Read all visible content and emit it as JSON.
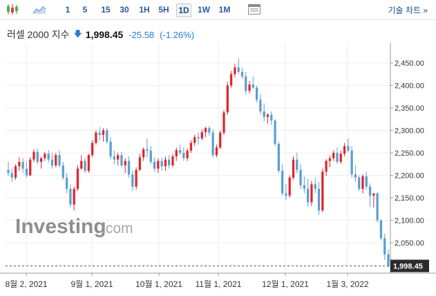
{
  "toolbar": {
    "chart_type_icons": [
      "candlestick-icon",
      "area-chart-icon"
    ],
    "timeframes": [
      "1",
      "5",
      "15",
      "30",
      "1H",
      "5H",
      "1D",
      "1W",
      "1M"
    ],
    "active_timeframe": "1D",
    "settings_icon": "table-icon",
    "technical_chart_link": "기술 차트 »"
  },
  "quote": {
    "name": "러셀 2000 지수",
    "direction_icon": "down-arrow-icon",
    "last": "1,998.45",
    "change": "-25.58",
    "change_pct": "(-1.26%)"
  },
  "watermark": {
    "brand": "Investing",
    "suffix": ".com"
  },
  "colors": {
    "up": "#e0262b",
    "down": "#5a9fd4",
    "accent": "#1f7fd1",
    "grid": "#eeeeee",
    "label_bg": "#2b2b2b"
  },
  "chart_data": {
    "type": "candlestick",
    "title": "",
    "ylabel": "",
    "xlabel": "",
    "y_ticks": [
      "2,450.00",
      "2,400.00",
      "2,350.00",
      "2,300.00",
      "2,250.00",
      "2,200.00",
      "2,150.00",
      "2,100.00",
      "2,050.00"
    ],
    "y_tick_values": [
      2450,
      2400,
      2350,
      2300,
      2250,
      2200,
      2150,
      2100,
      2050
    ],
    "x_ticks": [
      "8월 2, 2021",
      "9월 1, 2021",
      "10월 1, 2021",
      "11월 1, 2021",
      "12월 1, 2021",
      "1월 3, 2022"
    ],
    "ylim": [
      1985,
      2465
    ],
    "current_price_label": "1,998.45",
    "current_price": 1998.45,
    "grid": true,
    "series": [
      {
        "values": [
          [
            2212,
            2230,
            2198,
            2205
          ],
          [
            2205,
            2215,
            2185,
            2195
          ],
          [
            2195,
            2225,
            2190,
            2220
          ],
          [
            2220,
            2240,
            2210,
            2230
          ],
          [
            2230,
            2238,
            2205,
            2215
          ],
          [
            2215,
            2230,
            2195,
            2200
          ],
          [
            2200,
            2240,
            2198,
            2235
          ],
          [
            2235,
            2258,
            2230,
            2252
          ],
          [
            2252,
            2260,
            2225,
            2230
          ],
          [
            2230,
            2242,
            2215,
            2238
          ],
          [
            2238,
            2252,
            2232,
            2248
          ],
          [
            2248,
            2256,
            2228,
            2235
          ],
          [
            2235,
            2250,
            2215,
            2222
          ],
          [
            2222,
            2250,
            2218,
            2245
          ],
          [
            2245,
            2255,
            2218,
            2222
          ],
          [
            2222,
            2230,
            2190,
            2195
          ],
          [
            2195,
            2205,
            2160,
            2170
          ],
          [
            2170,
            2180,
            2128,
            2135
          ],
          [
            2135,
            2175,
            2122,
            2170
          ],
          [
            2170,
            2222,
            2165,
            2215
          ],
          [
            2215,
            2245,
            2212,
            2232
          ],
          [
            2232,
            2238,
            2205,
            2210
          ],
          [
            2210,
            2248,
            2205,
            2245
          ],
          [
            2245,
            2278,
            2240,
            2272
          ],
          [
            2272,
            2300,
            2268,
            2295
          ],
          [
            2295,
            2308,
            2278,
            2290
          ],
          [
            2290,
            2305,
            2275,
            2300
          ],
          [
            2300,
            2305,
            2270,
            2275
          ],
          [
            2275,
            2285,
            2235,
            2242
          ],
          [
            2242,
            2255,
            2225,
            2235
          ],
          [
            2235,
            2250,
            2222,
            2245
          ],
          [
            2245,
            2252,
            2218,
            2222
          ],
          [
            2222,
            2238,
            2205,
            2232
          ],
          [
            2232,
            2242,
            2195,
            2202
          ],
          [
            2202,
            2210,
            2165,
            2175
          ],
          [
            2175,
            2218,
            2168,
            2212
          ],
          [
            2212,
            2248,
            2210,
            2240
          ],
          [
            2240,
            2262,
            2232,
            2258
          ],
          [
            2258,
            2282,
            2240,
            2255
          ],
          [
            2255,
            2265,
            2225,
            2230
          ],
          [
            2230,
            2240,
            2208,
            2215
          ],
          [
            2215,
            2238,
            2205,
            2232
          ],
          [
            2232,
            2240,
            2210,
            2220
          ],
          [
            2220,
            2242,
            2210,
            2235
          ],
          [
            2235,
            2245,
            2215,
            2222
          ],
          [
            2222,
            2248,
            2218,
            2242
          ],
          [
            2242,
            2262,
            2232,
            2256
          ],
          [
            2256,
            2268,
            2245,
            2250
          ],
          [
            2250,
            2262,
            2232,
            2238
          ],
          [
            2238,
            2260,
            2232,
            2255
          ],
          [
            2255,
            2278,
            2250,
            2272
          ],
          [
            2272,
            2290,
            2265,
            2285
          ],
          [
            2285,
            2295,
            2268,
            2282
          ],
          [
            2282,
            2302,
            2278,
            2296
          ],
          [
            2296,
            2308,
            2285,
            2305
          ],
          [
            2305,
            2310,
            2288,
            2295
          ],
          [
            2295,
            2302,
            2240,
            2245
          ],
          [
            2245,
            2268,
            2240,
            2262
          ],
          [
            2262,
            2300,
            2258,
            2295
          ],
          [
            2295,
            2345,
            2290,
            2340
          ],
          [
            2340,
            2408,
            2335,
            2400
          ],
          [
            2400,
            2432,
            2395,
            2425
          ],
          [
            2425,
            2448,
            2418,
            2440
          ],
          [
            2440,
            2460,
            2425,
            2430
          ],
          [
            2430,
            2440,
            2415,
            2420
          ],
          [
            2420,
            2430,
            2380,
            2388
          ],
          [
            2388,
            2410,
            2382,
            2402
          ],
          [
            2402,
            2420,
            2392,
            2395
          ],
          [
            2395,
            2400,
            2362,
            2368
          ],
          [
            2368,
            2380,
            2335,
            2342
          ],
          [
            2342,
            2360,
            2320,
            2330
          ],
          [
            2330,
            2338,
            2315,
            2335
          ],
          [
            2335,
            2342,
            2312,
            2322
          ],
          [
            2322,
            2325,
            2265,
            2270
          ],
          [
            2270,
            2275,
            2205,
            2210
          ],
          [
            2210,
            2225,
            2155,
            2160
          ],
          [
            2160,
            2180,
            2145,
            2155
          ],
          [
            2155,
            2200,
            2150,
            2195
          ],
          [
            2195,
            2242,
            2190,
            2235
          ],
          [
            2235,
            2250,
            2205,
            2212
          ],
          [
            2212,
            2225,
            2170,
            2178
          ],
          [
            2178,
            2198,
            2160,
            2170
          ],
          [
            2170,
            2192,
            2130,
            2140
          ],
          [
            2140,
            2188,
            2132,
            2180
          ],
          [
            2180,
            2195,
            2160,
            2170
          ],
          [
            2170,
            2185,
            2112,
            2122
          ],
          [
            2122,
            2215,
            2118,
            2208
          ],
          [
            2208,
            2236,
            2198,
            2232
          ],
          [
            2232,
            2244,
            2218,
            2238
          ],
          [
            2238,
            2256,
            2232,
            2250
          ],
          [
            2250,
            2262,
            2225,
            2230
          ],
          [
            2230,
            2255,
            2225,
            2248
          ],
          [
            2248,
            2272,
            2242,
            2265
          ],
          [
            2265,
            2282,
            2252,
            2255
          ],
          [
            2255,
            2265,
            2195,
            2202
          ],
          [
            2202,
            2222,
            2185,
            2195
          ],
          [
            2195,
            2200,
            2165,
            2170
          ],
          [
            2170,
            2202,
            2160,
            2198
          ],
          [
            2198,
            2208,
            2168,
            2175
          ],
          [
            2175,
            2182,
            2130,
            2155
          ],
          [
            2155,
            2160,
            2128,
            2160
          ],
          [
            2160,
            2162,
            2095,
            2100
          ],
          [
            2100,
            2102,
            2055,
            2060
          ],
          [
            2060,
            2070,
            2012,
            2024
          ],
          [
            2024,
            2035,
            1995,
            1998
          ]
        ]
      }
    ]
  }
}
